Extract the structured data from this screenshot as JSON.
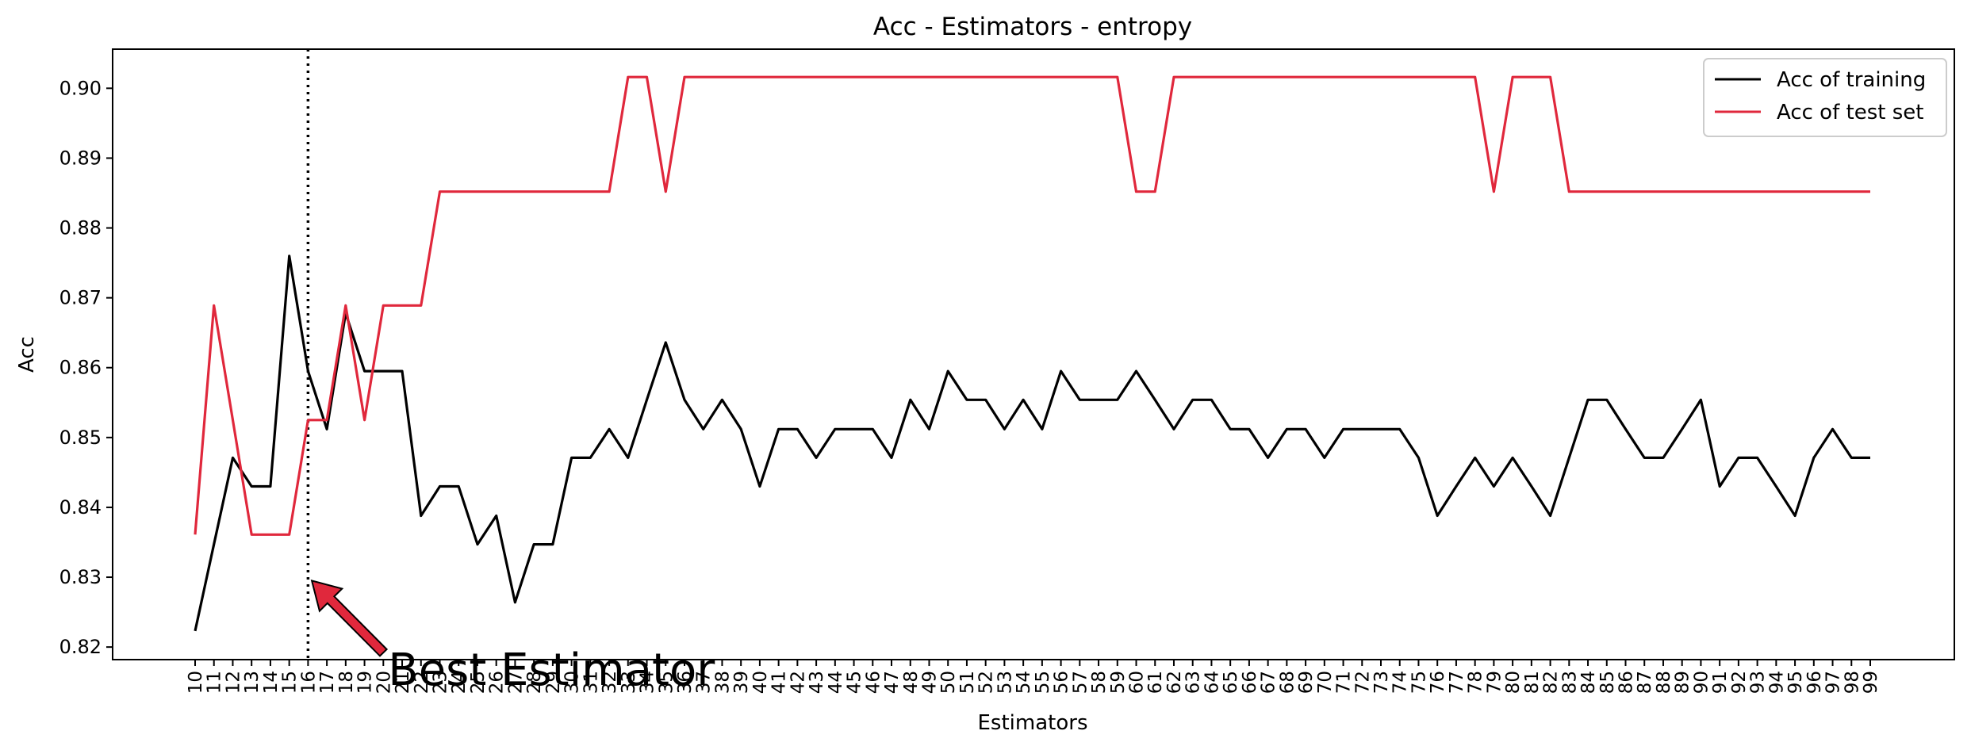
{
  "chart_data": {
    "type": "line",
    "title": "Acc - Estimators - entropy",
    "xlabel": "Estimators",
    "ylabel": "Acc",
    "x": [
      10,
      11,
      12,
      13,
      14,
      15,
      16,
      17,
      18,
      19,
      20,
      21,
      22,
      23,
      24,
      25,
      26,
      27,
      28,
      29,
      30,
      31,
      32,
      33,
      34,
      35,
      36,
      37,
      38,
      39,
      40,
      41,
      42,
      43,
      44,
      45,
      46,
      47,
      48,
      49,
      50,
      51,
      52,
      53,
      54,
      55,
      56,
      57,
      58,
      59,
      60,
      61,
      62,
      63,
      64,
      65,
      66,
      67,
      68,
      69,
      70,
      71,
      72,
      73,
      74,
      75,
      76,
      77,
      78,
      79,
      80,
      81,
      82,
      83,
      84,
      85,
      86,
      87,
      88,
      89,
      90,
      91,
      92,
      93,
      94,
      95,
      96,
      97,
      98,
      99
    ],
    "ylim": [
      0.8182,
      0.9056
    ],
    "yticks": [
      "0.82",
      "0.83",
      "0.84",
      "0.85",
      "0.86",
      "0.87",
      "0.88",
      "0.89",
      "0.90"
    ],
    "grid": false,
    "legend_position": "top-right",
    "series": [
      {
        "name": "Acc of training",
        "color": "#000000",
        "values": [
          0.8223,
          0.8347,
          0.8471,
          0.843,
          0.843,
          0.876,
          0.8595,
          0.8512,
          0.8678,
          0.8595,
          0.8595,
          0.8595,
          0.8388,
          0.843,
          0.843,
          0.8347,
          0.8388,
          0.8264,
          0.8347,
          0.8347,
          0.8471,
          0.8471,
          0.8512,
          0.8471,
          0.8554,
          0.8636,
          0.8554,
          0.8512,
          0.8554,
          0.8512,
          0.843,
          0.8512,
          0.8512,
          0.8471,
          0.8512,
          0.8512,
          0.8512,
          0.8471,
          0.8554,
          0.8512,
          0.8595,
          0.8554,
          0.8554,
          0.8512,
          0.8554,
          0.8512,
          0.8595,
          0.8554,
          0.8554,
          0.8554,
          0.8595,
          0.8554,
          0.8512,
          0.8554,
          0.8554,
          0.8512,
          0.8512,
          0.8471,
          0.8512,
          0.8512,
          0.8471,
          0.8512,
          0.8512,
          0.8512,
          0.8512,
          0.8471,
          0.8388,
          0.843,
          0.8471,
          0.843,
          0.8471,
          0.843,
          0.8388,
          0.8471,
          0.8554,
          0.8554,
          0.8512,
          0.8471,
          0.8471,
          0.8512,
          0.8554,
          0.843,
          0.8471,
          0.8471,
          0.843,
          0.8388,
          0.8471,
          0.8512,
          0.8471,
          0.8471
        ]
      },
      {
        "name": "Acc of test set",
        "color": "#e0283c",
        "values": [
          0.8361,
          0.8689,
          0.8525,
          0.8361,
          0.8361,
          0.8361,
          0.8525,
          0.8525,
          0.8689,
          0.8525,
          0.8689,
          0.8689,
          0.8689,
          0.8852,
          0.8852,
          0.8852,
          0.8852,
          0.8852,
          0.8852,
          0.8852,
          0.8852,
          0.8852,
          0.8852,
          0.9016,
          0.9016,
          0.8852,
          0.9016,
          0.9016,
          0.9016,
          0.9016,
          0.9016,
          0.9016,
          0.9016,
          0.9016,
          0.9016,
          0.9016,
          0.9016,
          0.9016,
          0.9016,
          0.9016,
          0.9016,
          0.9016,
          0.9016,
          0.9016,
          0.9016,
          0.9016,
          0.9016,
          0.9016,
          0.9016,
          0.9016,
          0.8852,
          0.8852,
          0.9016,
          0.9016,
          0.9016,
          0.9016,
          0.9016,
          0.9016,
          0.9016,
          0.9016,
          0.9016,
          0.9016,
          0.9016,
          0.9016,
          0.9016,
          0.9016,
          0.9016,
          0.9016,
          0.9016,
          0.8852,
          0.9016,
          0.9016,
          0.9016,
          0.8852,
          0.8852,
          0.8852,
          0.8852,
          0.8852,
          0.8852,
          0.8852,
          0.8852,
          0.8852,
          0.8852,
          0.8852,
          0.8852,
          0.8852,
          0.8852,
          0.8852,
          0.8852,
          0.8852
        ]
      }
    ],
    "vline": {
      "x": 16,
      "style": "dotted"
    },
    "annotation": {
      "text": "Best Estimator",
      "arrow_from": [
        20,
        0.8192
      ],
      "arrow_to": [
        16.2,
        0.8295
      ],
      "arrow_color": "#e0283c"
    }
  }
}
